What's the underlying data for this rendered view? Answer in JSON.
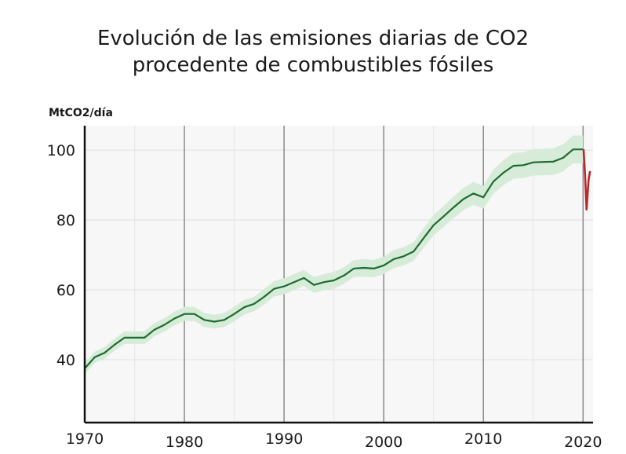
{
  "chart_data": {
    "type": "line",
    "title_lines": [
      "Evolución de las emisiones diarias de CO2",
      "procedente de combustibles fósiles"
    ],
    "ylabel": "MtCO2/día",
    "xlabel": "",
    "xlim": [
      1970,
      2021
    ],
    "ylim": [
      22,
      107
    ],
    "xticks": [
      1970,
      1980,
      1990,
      2000,
      2010,
      2020
    ],
    "yticks": [
      40,
      60,
      80,
      100
    ],
    "grid": true,
    "series": [
      {
        "color": "#1e6b30",
        "band_color": "#d6ecd8",
        "x": [
          1970,
          1971,
          1972,
          1973,
          1974,
          1975,
          1976,
          1977,
          1978,
          1979,
          1980,
          1981,
          1982,
          1983,
          1984,
          1985,
          1986,
          1987,
          1988,
          1989,
          1990,
          1991,
          1992,
          1993,
          1994,
          1995,
          1996,
          1997,
          1998,
          1999,
          2000,
          2001,
          2002,
          2003,
          2004,
          2005,
          2006,
          2007,
          2008,
          2009,
          2010,
          2011,
          2012,
          2013,
          2014,
          2015,
          2016,
          2017,
          2018,
          2019,
          2020
        ],
        "y": [
          37.5,
          40.7,
          42.0,
          44.3,
          46.3,
          46.3,
          46.3,
          48.6,
          50.0,
          51.8,
          53.1,
          53.1,
          51.4,
          50.9,
          51.4,
          53.1,
          55.0,
          56.0,
          58.0,
          60.3,
          61.0,
          62.2,
          63.4,
          61.4,
          62.2,
          62.7,
          64.1,
          66.1,
          66.3,
          66.1,
          67.0,
          68.8,
          69.6,
          71.0,
          74.8,
          78.5,
          81.0,
          83.6,
          86.0,
          87.6,
          86.5,
          91.0,
          93.5,
          95.5,
          95.7,
          96.5,
          96.6,
          96.7,
          97.8,
          100.2,
          100.2
        ],
        "band_halfwidth": [
          1.6,
          1.6,
          1.7,
          1.7,
          1.8,
          1.8,
          1.8,
          1.9,
          1.9,
          2.0,
          2.0,
          2.0,
          2.0,
          2.0,
          2.0,
          2.1,
          2.1,
          2.1,
          2.2,
          2.2,
          2.3,
          2.3,
          2.3,
          2.3,
          2.3,
          2.4,
          2.4,
          2.4,
          2.5,
          2.5,
          2.5,
          2.6,
          2.6,
          2.7,
          2.8,
          2.9,
          3.0,
          3.1,
          3.2,
          3.3,
          3.3,
          3.5,
          3.6,
          3.7,
          3.7,
          3.8,
          3.8,
          3.8,
          3.9,
          4.0,
          4.0
        ]
      },
      {
        "color": "#b8282c",
        "x": [
          2020.05,
          2020.2,
          2020.35,
          2020.55,
          2020.7
        ],
        "y": [
          100.2,
          93.0,
          83.0,
          91.5,
          94.0
        ]
      }
    ]
  }
}
